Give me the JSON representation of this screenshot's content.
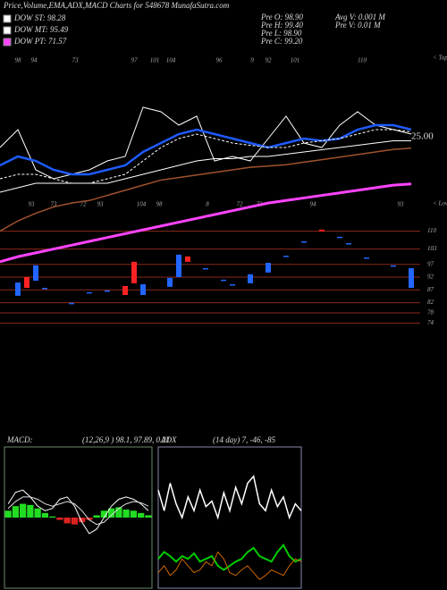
{
  "header": "Price,Volume,EMA,ADX,MACD Charts for 548678 MunafaSutra.com",
  "legend": [
    {
      "label": "DOW ST: 98.28",
      "color": "#ffffff"
    },
    {
      "label": "DOW MT: 95.49",
      "color": "#ffffff"
    },
    {
      "label": "DOW PT: 71.57",
      "color": "#ff44ff"
    }
  ],
  "info": [
    "Pre  O: 98.90",
    "Pre  H: 99.40",
    "Pre  L: 98.90",
    "Pre  C: 99.20",
    "Avg V: 0.001 M",
    "Pre  V: 0.01 M"
  ],
  "tops_label": "< Tops",
  "lows_label": "< Lows",
  "top_labels": [
    "98",
    "94",
    "73",
    "97",
    "101",
    "104",
    "96",
    "9",
    "92",
    "101",
    "110"
  ],
  "low_labels": [
    "93",
    "73",
    "72",
    "93",
    "104",
    "98",
    "8",
    "72",
    "72",
    "94",
    "93"
  ],
  "price_note": "25.00",
  "chart_data": [
    {
      "type": "line",
      "ylim": [
        50,
        120
      ],
      "series": [
        {
          "name": "Price",
          "color": "#ffffff",
          "width": 1,
          "values": [
            78,
            86,
            68,
            64,
            66,
            68,
            72,
            74,
            96,
            94,
            88,
            92,
            72,
            74,
            72,
            82,
            92,
            80,
            78,
            88,
            94,
            88,
            86,
            84
          ]
        },
        {
          "name": "EMA fast",
          "color": "#1e5bff",
          "width": 2.5,
          "values": [
            70,
            74,
            72,
            68,
            66,
            66,
            68,
            70,
            76,
            80,
            84,
            86,
            84,
            82,
            80,
            78,
            80,
            82,
            81,
            82,
            86,
            88,
            88,
            86
          ]
        },
        {
          "name": "EMA mid",
          "color": "#ffffff",
          "width": 1,
          "dash": true,
          "values": [
            64,
            66,
            66,
            64,
            62,
            62,
            64,
            66,
            72,
            78,
            82,
            84,
            82,
            80,
            79,
            78,
            78,
            80,
            81,
            82,
            84,
            86,
            86,
            85
          ]
        },
        {
          "name": "EMA slow",
          "color": "#ffffff",
          "width": 1,
          "values": [
            58,
            60,
            62,
            62,
            62,
            62,
            62,
            64,
            66,
            68,
            70,
            72,
            73,
            73,
            74,
            74,
            75,
            76,
            77,
            78,
            79,
            80,
            81,
            81
          ]
        }
      ]
    },
    {
      "type": "candlestick",
      "ylim": [
        71,
        148
      ],
      "xlim": [
        0,
        47
      ],
      "yticks": [
        110,
        103,
        97,
        92,
        87,
        82,
        78,
        74
      ],
      "grid": true,
      "grid_color": "#8b2a1a",
      "up_color": "#2266ff",
      "down_color": "#ff2222",
      "candles": [
        {
          "x": 2,
          "o": 84.7,
          "h": 89.9,
          "l": 84.7,
          "c": 89.9
        },
        {
          "x": 3,
          "o": 92,
          "h": 92,
          "l": 87.8,
          "c": 87.8
        },
        {
          "x": 4,
          "o": 90.6,
          "h": 96.6,
          "l": 90.6,
          "c": 96.6
        },
        {
          "x": 5,
          "o": 87.8,
          "h": 87.8,
          "l": 87.8,
          "c": 87.8
        },
        {
          "x": 8,
          "o": 81.9,
          "h": 81.9,
          "l": 81.9,
          "c": 81.9
        },
        {
          "x": 10,
          "o": 86.1,
          "h": 86.1,
          "l": 86.1,
          "c": 86.1
        },
        {
          "x": 12,
          "o": 86.8,
          "h": 86.8,
          "l": 86.8,
          "c": 86.8
        },
        {
          "x": 14,
          "o": 88.5,
          "h": 88.5,
          "l": 85,
          "c": 85
        },
        {
          "x": 15,
          "o": 98,
          "h": 98,
          "l": 89.6,
          "c": 89.6
        },
        {
          "x": 16,
          "o": 85,
          "h": 89.2,
          "l": 85,
          "c": 89.2
        },
        {
          "x": 19,
          "o": 88.2,
          "h": 91.7,
          "l": 88.2,
          "c": 91.7
        },
        {
          "x": 20,
          "o": 92,
          "h": 100.8,
          "l": 92,
          "c": 100.8
        },
        {
          "x": 21,
          "o": 100.1,
          "h": 100.1,
          "l": 98,
          "c": 98
        },
        {
          "x": 23,
          "o": 95.5,
          "h": 95.5,
          "l": 95.5,
          "c": 95.5
        },
        {
          "x": 25,
          "o": 91,
          "h": 91,
          "l": 91,
          "c": 91
        },
        {
          "x": 26,
          "o": 89.2,
          "h": 89.2,
          "l": 89.2,
          "c": 89.2
        },
        {
          "x": 28,
          "o": 89.6,
          "h": 93.1,
          "l": 89.6,
          "c": 93.1
        },
        {
          "x": 30,
          "o": 93.8,
          "h": 97.6,
          "l": 93.8,
          "c": 97.6
        },
        {
          "x": 32,
          "o": 100.4,
          "h": 100.4,
          "l": 100.4,
          "c": 100.4
        },
        {
          "x": 34,
          "o": 106,
          "h": 106,
          "l": 106,
          "c": 106
        },
        {
          "x": 36,
          "o": 110.6,
          "h": 110.6,
          "l": 109.9,
          "c": 109.9
        },
        {
          "x": 38,
          "o": 107.8,
          "h": 107.8,
          "l": 107.8,
          "c": 107.8
        },
        {
          "x": 39,
          "o": 105.3,
          "h": 105.3,
          "l": 105.3,
          "c": 105.3
        },
        {
          "x": 41,
          "o": 99.7,
          "h": 99.7,
          "l": 99.7,
          "c": 99.7
        },
        {
          "x": 44,
          "o": 96.6,
          "h": 96.6,
          "l": 96.6,
          "c": 96.6
        },
        {
          "x": 46,
          "o": 87.8,
          "h": 95.5,
          "l": 87.8,
          "c": 95.5
        }
      ],
      "line_x": [
        0,
        2,
        4,
        6,
        8,
        10,
        12,
        14,
        16,
        18,
        20,
        22,
        24,
        26,
        28,
        30,
        32,
        34,
        36,
        38,
        40,
        42,
        44,
        46
      ],
      "series": [
        {
          "name": "EMA long",
          "color": "#a0522d",
          "width": 1.5,
          "values": [
            110,
            114,
            117,
            119.5,
            121,
            122,
            124,
            126,
            128,
            130,
            131,
            132,
            133,
            134,
            135,
            135.5,
            136,
            137,
            138,
            139,
            140,
            141,
            142,
            142.5
          ]
        },
        {
          "name": "EMA trend",
          "color": "#ff44ff",
          "width": 3,
          "values": [
            98,
            100,
            101.5,
            103,
            104.5,
            106,
            107.5,
            109,
            110.5,
            112,
            113.5,
            115,
            116.5,
            118,
            119.5,
            121,
            122,
            123,
            124,
            125,
            126,
            127,
            128,
            128.5
          ]
        }
      ]
    },
    {
      "type": "macd",
      "title": "MACD:",
      "subtitle": "(12,26,9 ) 98.1, 97.89, 0.21",
      "ylim": [
        -3,
        3
      ],
      "histogram": {
        "pos_color": "#22dd22",
        "neg_color": "#dd2222",
        "values": [
          0.3,
          0.5,
          0.6,
          0.55,
          0.4,
          0.2,
          0.05,
          -0.1,
          -0.25,
          -0.3,
          -0.2,
          -0.1,
          0.1,
          0.3,
          0.4,
          0.45,
          0.35,
          0.3,
          0.2,
          0.1
        ]
      },
      "series": [
        {
          "name": "MACD",
          "color": "#ffffff",
          "values": [
            0.6,
            1.1,
            1.2,
            0.9,
            0.5,
            0.3,
            0.4,
            0.8,
            0.9,
            0.5,
            -0.2,
            -0.7,
            -0.5,
            0.0,
            0.5,
            0.8,
            0.9,
            0.8,
            0.6,
            0.3
          ]
        },
        {
          "name": "Signal",
          "color": "#dddddd",
          "values": [
            0.4,
            0.7,
            0.9,
            0.9,
            0.8,
            0.6,
            0.5,
            0.6,
            0.7,
            0.6,
            0.3,
            -0.1,
            -0.3,
            -0.2,
            0.1,
            0.4,
            0.6,
            0.7,
            0.65,
            0.5
          ]
        }
      ]
    },
    {
      "type": "line",
      "title": "ADX",
      "subtitle": "(14 day) 7, -46, -85",
      "ylim": [
        0,
        100
      ],
      "series": [
        {
          "name": "ADX",
          "color": "#ffffff",
          "width": 1.5,
          "values": [
            70,
            55,
            75,
            60,
            50,
            65,
            55,
            70,
            58,
            62,
            50,
            68,
            55,
            72,
            60,
            75,
            80,
            60,
            55,
            70,
            58,
            65,
            50,
            60,
            55
          ]
        },
        {
          "name": "+DI",
          "color": "#00cc00",
          "width": 2,
          "values": [
            20,
            25,
            22,
            18,
            22,
            20,
            24,
            18,
            20,
            22,
            15,
            12,
            15,
            18,
            20,
            25,
            28,
            22,
            20,
            18,
            25,
            30,
            22,
            18,
            20
          ]
        },
        {
          "name": "-DI",
          "color": "#cc6600",
          "width": 1,
          "values": [
            10,
            15,
            8,
            12,
            20,
            15,
            10,
            12,
            18,
            15,
            25,
            20,
            10,
            8,
            12,
            15,
            10,
            5,
            8,
            12,
            10,
            8,
            15,
            20,
            18
          ]
        }
      ]
    }
  ]
}
